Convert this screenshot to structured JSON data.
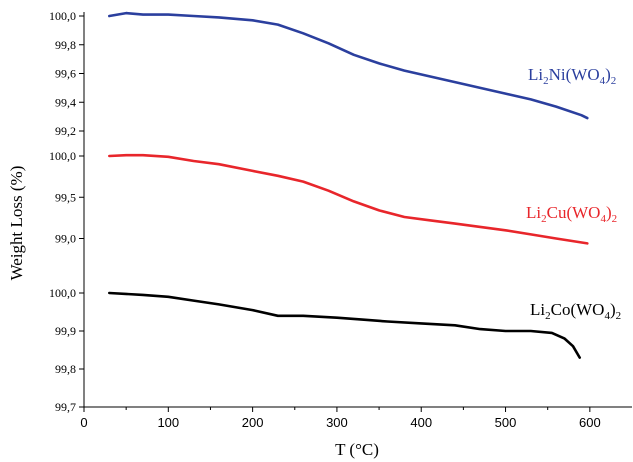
{
  "chart_data": {
    "type": "line",
    "xlabel": "T (°C)",
    "ylabel": "Weight Loss (%)",
    "xlim": [
      0,
      650
    ],
    "x_ticks": [
      "0",
      "100",
      "200",
      "300",
      "400",
      "500",
      "600"
    ],
    "x_tick_values": [
      0,
      100,
      200,
      300,
      400,
      500,
      600
    ],
    "grid": false,
    "panels": [
      {
        "name": "Li2Ni(WO4)2",
        "color": "#2b3f9e",
        "ylim": [
          99.2,
          100.0
        ],
        "y_ticks": [
          "100,0",
          "99,8",
          "99,6",
          "99,4",
          "99,2"
        ],
        "y_tick_values": [
          100.0,
          99.8,
          99.6,
          99.4,
          99.2
        ],
        "x": [
          30,
          50,
          70,
          100,
          130,
          160,
          200,
          230,
          260,
          290,
          320,
          350,
          380,
          410,
          440,
          470,
          500,
          530,
          560,
          590,
          597
        ],
        "y": [
          100.0,
          100.02,
          100.01,
          100.01,
          100.0,
          99.99,
          99.97,
          99.94,
          99.88,
          99.81,
          99.73,
          99.67,
          99.62,
          99.58,
          99.54,
          99.5,
          99.46,
          99.42,
          99.37,
          99.31,
          99.29
        ]
      },
      {
        "name": "Li2Cu(WO4)2",
        "color": "#e8262b",
        "ylim": [
          98.8,
          100.0
        ],
        "y_ticks": [
          "100,0",
          "99,5",
          "99,0"
        ],
        "y_tick_values": [
          100.0,
          99.5,
          99.0
        ],
        "x": [
          30,
          50,
          70,
          100,
          130,
          160,
          200,
          230,
          260,
          290,
          320,
          350,
          380,
          410,
          440,
          470,
          500,
          530,
          560,
          597
        ],
        "y": [
          100.0,
          100.01,
          100.01,
          99.99,
          99.94,
          99.9,
          99.82,
          99.76,
          99.69,
          99.58,
          99.45,
          99.34,
          99.26,
          99.22,
          99.18,
          99.14,
          99.1,
          99.05,
          99.0,
          98.94
        ]
      },
      {
        "name": "Li2Co(WO4)2",
        "color": "#000000",
        "ylim": [
          99.7,
          100.0
        ],
        "y_ticks": [
          "100,0",
          "99,9",
          "99,8",
          "99,7"
        ],
        "y_tick_values": [
          100.0,
          99.9,
          99.8,
          99.7
        ],
        "x": [
          30,
          70,
          100,
          130,
          160,
          200,
          230,
          260,
          300,
          330,
          360,
          400,
          440,
          470,
          500,
          530,
          555,
          570,
          580,
          588
        ],
        "y": [
          100.0,
          99.995,
          99.99,
          99.98,
          99.97,
          99.955,
          99.94,
          99.94,
          99.935,
          99.93,
          99.925,
          99.92,
          99.915,
          99.905,
          99.9,
          99.9,
          99.895,
          99.88,
          99.86,
          99.83
        ]
      }
    ],
    "labels": [
      {
        "base": "Li",
        "sub1": "2",
        "mid": "Ni(WO",
        "sub2": "4",
        "end": ")",
        "sub3": "2"
      },
      {
        "base": "Li",
        "sub1": "2",
        "mid": "Cu(WO",
        "sub2": "4",
        "end": ")",
        "sub3": "2"
      },
      {
        "base": "Li",
        "sub1": "2",
        "mid": "Co(WO",
        "sub2": "4",
        "end": ")",
        "sub3": "2"
      }
    ]
  }
}
